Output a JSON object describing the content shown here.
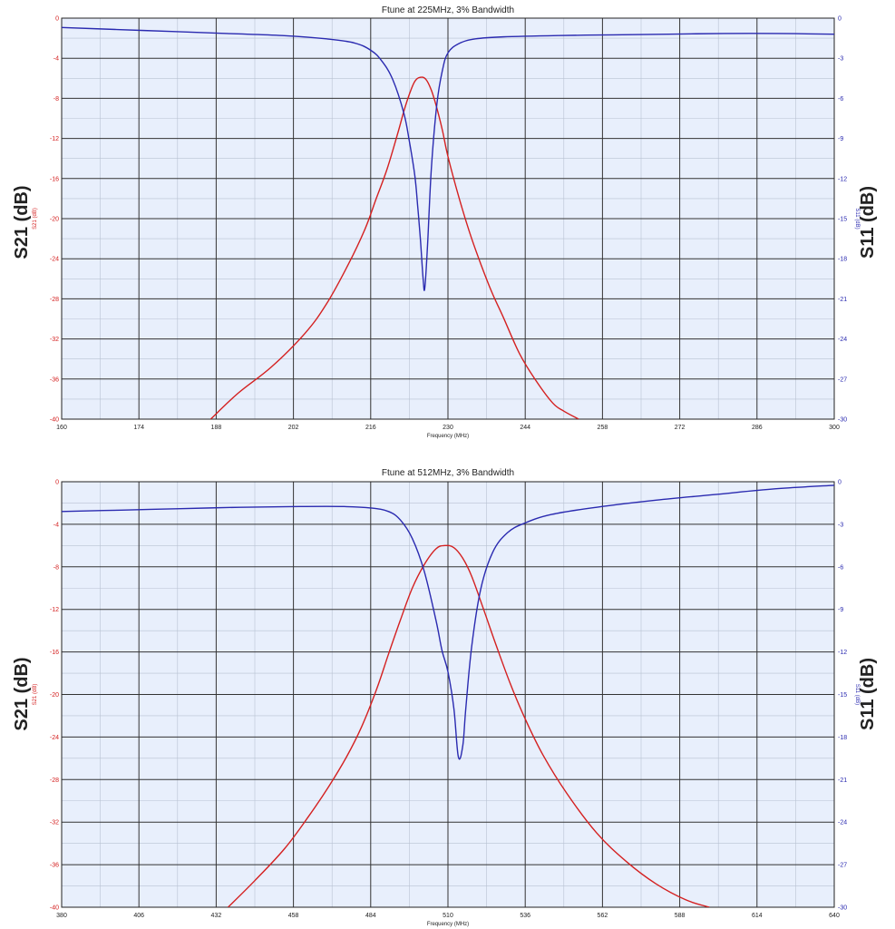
{
  "colors": {
    "s21": "#d42020",
    "s11": "#2a2ab0",
    "plot_bg": "#e8effc",
    "major_grid": "#333333",
    "minor_grid": "#b8c2d2"
  },
  "chart_data": [
    {
      "type": "line",
      "title": "Ftune at 225MHz, 3% Bandwidth",
      "xlabel": "Frequency (MHz)",
      "ylabel_left": "S21 (dB)",
      "ylabel_right": "S11 (dB)",
      "outer_label_left": "S21 (dB)",
      "outer_label_right": "S11 (dB)",
      "xlim": [
        160,
        300
      ],
      "xticks": [
        160,
        174,
        188,
        202,
        216,
        230,
        244,
        258,
        272,
        286,
        300
      ],
      "ylim_left": [
        -40,
        0
      ],
      "yticks_left": [
        0,
        -4,
        -8,
        -12,
        -16,
        -20,
        -24,
        -28,
        -32,
        -36,
        -40
      ],
      "ylim_right": [
        -30,
        0
      ],
      "yticks_right": [
        0,
        -3,
        -6,
        -9,
        -12,
        -15,
        -18,
        -21,
        -24,
        -27,
        -30
      ],
      "grid": true,
      "series": [
        {
          "name": "S21 (dB)",
          "axis": "left",
          "color": "#d42020",
          "x": [
            187,
            192,
            198,
            204,
            208,
            212,
            215,
            217,
            219,
            221,
            222,
            223,
            224,
            225,
            226,
            227,
            228,
            229,
            230,
            232,
            234,
            236,
            238,
            240,
            243,
            246,
            249,
            251,
            253.7
          ],
          "y": [
            -40,
            -37.4,
            -34.8,
            -31.5,
            -28.5,
            -24.5,
            -21,
            -18,
            -15,
            -11.3,
            -9.3,
            -7.6,
            -6.3,
            -5.9,
            -6.1,
            -7.2,
            -9.0,
            -11.2,
            -13.8,
            -17.9,
            -21.5,
            -24.6,
            -27.4,
            -29.8,
            -33.5,
            -36.2,
            -38.4,
            -39.2,
            -40
          ]
        },
        {
          "name": "S11 (dB)",
          "axis": "right",
          "color": "#2a2ab0",
          "x": [
            160,
            170,
            180,
            190,
            200,
            208,
            213,
            216,
            218,
            220,
            222,
            223,
            224,
            224.5,
            225,
            225.5,
            225.8,
            226.3,
            227,
            228,
            229,
            230,
            232,
            235,
            240,
            250,
            260,
            270,
            280,
            290,
            300
          ],
          "y": [
            -0.7,
            -0.85,
            -1.0,
            -1.15,
            -1.3,
            -1.55,
            -1.85,
            -2.4,
            -3.2,
            -4.6,
            -7.1,
            -9.2,
            -11.8,
            -14.0,
            -16.5,
            -19.5,
            -20.2,
            -17.0,
            -11.2,
            -6.4,
            -3.9,
            -2.6,
            -1.9,
            -1.55,
            -1.4,
            -1.3,
            -1.25,
            -1.2,
            -1.15,
            -1.15,
            -1.2
          ]
        }
      ]
    },
    {
      "type": "line",
      "title": "Ftune at 512MHz, 3% Bandwidth",
      "xlabel": "Frequency (MHz)",
      "ylabel_left": "S21 (dB)",
      "ylabel_right": "S11 (dB)",
      "outer_label_left": "S21 (dB)",
      "outer_label_right": "S11 (dB)",
      "xlim": [
        380,
        640
      ],
      "xticks": [
        380,
        406,
        432,
        458,
        484,
        510,
        536,
        562,
        588,
        614,
        640
      ],
      "ylim_left": [
        -40,
        0
      ],
      "yticks_left": [
        0,
        -4,
        -8,
        -12,
        -16,
        -20,
        -24,
        -28,
        -32,
        -36,
        -40
      ],
      "ylim_right": [
        -30,
        0
      ],
      "yticks_right": [
        0,
        -3,
        -6,
        -9,
        -12,
        -15,
        -18,
        -21,
        -24,
        -27,
        -30
      ],
      "grid": true,
      "series": [
        {
          "name": "S21 (dB)",
          "axis": "left",
          "color": "#d42020",
          "x": [
            436,
            445,
            455,
            463,
            470,
            476,
            481,
            486,
            490,
            494,
            498,
            502,
            506,
            509,
            512,
            515,
            518,
            522,
            526,
            531,
            536,
            542,
            550,
            560,
            570,
            580,
            590,
            598
          ],
          "y": [
            -40,
            -37.5,
            -34.5,
            -31.5,
            -28.6,
            -25.8,
            -23.0,
            -19.5,
            -16.2,
            -13.0,
            -10.0,
            -7.8,
            -6.3,
            -6.0,
            -6.2,
            -7.2,
            -8.9,
            -12.0,
            -15.2,
            -19.0,
            -22.3,
            -25.7,
            -29.3,
            -33.0,
            -35.7,
            -37.8,
            -39.3,
            -40
          ]
        },
        {
          "name": "S11 (dB)",
          "axis": "right",
          "color": "#2a2ab0",
          "x": [
            380,
            400,
            420,
            440,
            460,
            475,
            484,
            490,
            494,
            498,
            502,
            506,
            508,
            510,
            512,
            513.5,
            515,
            516,
            518,
            521,
            525,
            530,
            536,
            545,
            560,
            580,
            600,
            620,
            640
          ],
          "y": [
            -2.1,
            -2.0,
            -1.9,
            -1.8,
            -1.75,
            -1.75,
            -1.85,
            -2.1,
            -2.7,
            -4.0,
            -6.3,
            -9.8,
            -11.9,
            -13.4,
            -16.0,
            -19.4,
            -18.6,
            -16.0,
            -11.6,
            -7.6,
            -5.0,
            -3.6,
            -2.9,
            -2.3,
            -1.8,
            -1.3,
            -0.9,
            -0.5,
            -0.25
          ]
        }
      ]
    }
  ]
}
